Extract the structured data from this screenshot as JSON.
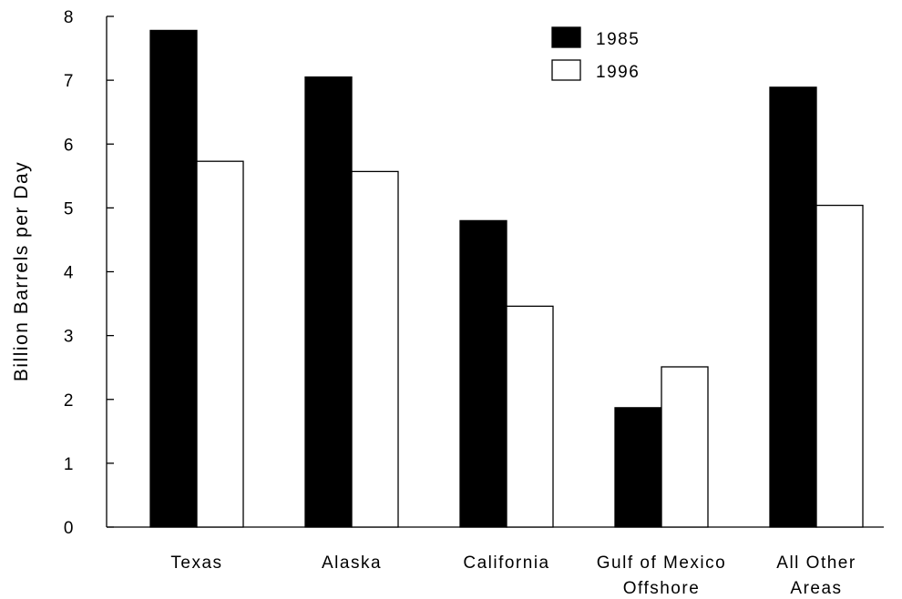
{
  "chart_data": {
    "type": "bar",
    "title": "",
    "xlabel": "",
    "ylabel": "Billion Barrels per Day",
    "ylim": [
      0,
      8
    ],
    "yticks": [
      "0",
      "1",
      "2",
      "3",
      "4",
      "5",
      "6",
      "7",
      "8"
    ],
    "categories": [
      [
        "Texas"
      ],
      [
        "Alaska"
      ],
      [
        "California"
      ],
      [
        "Gulf of Mexico",
        "Offshore"
      ],
      [
        "All Other",
        "Areas"
      ]
    ],
    "series": [
      {
        "name": "1985",
        "color": "#000000",
        "values": [
          7.78,
          7.05,
          4.8,
          1.87,
          6.89
        ]
      },
      {
        "name": "1996",
        "color": "#ffffff",
        "values": [
          5.73,
          5.57,
          3.46,
          2.51,
          5.04
        ]
      }
    ],
    "legend": {
      "position": "top-right"
    },
    "grid": false
  }
}
